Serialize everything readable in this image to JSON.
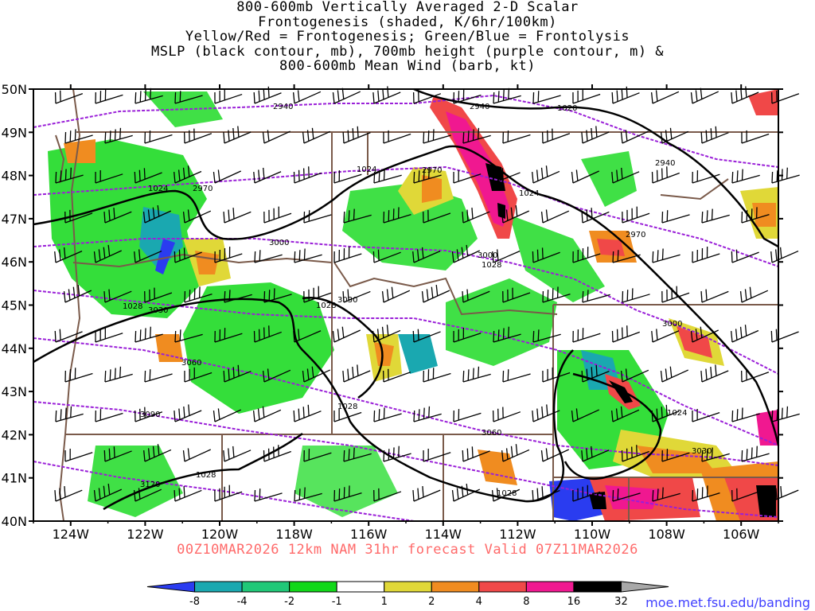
{
  "title": {
    "lines": [
      "800-600mb Vertically Averaged 2-D Scalar",
      "Frontogenesis (shaded, K/6hr/100km)",
      "Yellow/Red = Frontogenesis;  Green/Blue = Frontolysis",
      "MSLP (black contour, mb), 700mb height (purple contour, m) &",
      "800-600mb Mean Wind (barb, kt)"
    ]
  },
  "valid_line": "00Z10MAR2026 12km NAM 31hr forecast Valid 07Z11MAR2026",
  "credit": "moe.met.fsu.edu/banding",
  "axes": {
    "lat_labels": [
      "50N",
      "49N",
      "48N",
      "47N",
      "46N",
      "45N",
      "44N",
      "43N",
      "42N",
      "41N",
      "40N"
    ],
    "lon_labels": [
      "124W",
      "122W",
      "120W",
      "118W",
      "116W",
      "114W",
      "112W",
      "110W",
      "108W",
      "106W"
    ],
    "lat_range": [
      40,
      50
    ],
    "lon_range": [
      -125,
      -105
    ]
  },
  "colorbar": {
    "labels": [
      "-8",
      "-4",
      "-2",
      "-1",
      "1",
      "2",
      "4",
      "8",
      "16",
      "32"
    ],
    "colors": [
      "#2a3cf0",
      "#1aa8b0",
      "#20c878",
      "#10d818",
      "#ffffff",
      "#e0d838",
      "#f08c20",
      "#f04848",
      "#f01890",
      "#000000",
      "#a8a8a8"
    ]
  },
  "contours": {
    "height_labels": [
      "2940",
      "2940",
      "2940",
      "2970",
      "2970",
      "2970",
      "3000",
      "3000",
      "3000",
      "3030",
      "3030",
      "3030",
      "3060",
      "3060",
      "3090",
      "3120"
    ],
    "mslp_labels": [
      "1020",
      "1024",
      "1024",
      "1024",
      "1028",
      "1028",
      "1028",
      "1028",
      "1024",
      "1028",
      "1028"
    ]
  },
  "colors": {
    "mslp": "#000000",
    "height": "#9a1fd8",
    "border": "#7a5a4a",
    "title_red": "#ff6a6a"
  }
}
